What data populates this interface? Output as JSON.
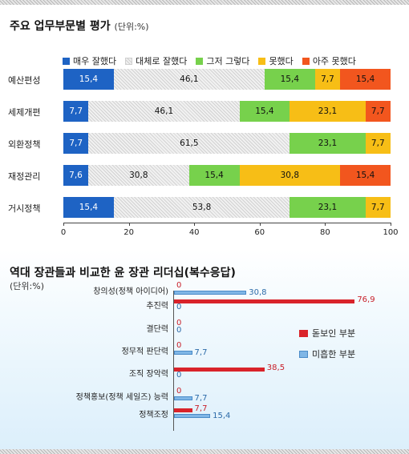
{
  "chart_data": [
    {
      "type": "bar",
      "orientation": "horizontal-stacked",
      "title": "주요 업무부문별 평가",
      "unit": "(단위:%)",
      "categories": [
        "예산편성",
        "세제개편",
        "외환정책",
        "재정관리",
        "거시정책"
      ],
      "series": [
        {
          "name": "매우 잘했다",
          "color": "#1e63c4",
          "values": [
            15.4,
            7.7,
            7.7,
            7.6,
            15.4
          ],
          "labels": [
            "15,4",
            "7,7",
            "7,7",
            "7,6",
            "15,4"
          ]
        },
        {
          "name": "대체로 잘했다",
          "color": "#e4e4e4",
          "values": [
            46.1,
            46.1,
            61.5,
            30.8,
            53.8
          ],
          "labels": [
            "46,1",
            "46,1",
            "61,5",
            "30,8",
            "53,8"
          ]
        },
        {
          "name": "그저 그렇다",
          "color": "#77d14c",
          "values": [
            15.4,
            15.4,
            23.1,
            15.4,
            23.1
          ],
          "labels": [
            "15,4",
            "15,4",
            "23,1",
            "15,4",
            "23,1"
          ]
        },
        {
          "name": "못했다",
          "color": "#f7be16",
          "values": [
            7.7,
            23.1,
            7.7,
            30.8,
            7.7
          ],
          "labels": [
            "7,7",
            "23,1",
            "7,7",
            "30,8",
            "7,7"
          ]
        },
        {
          "name": "아주 못했다",
          "color": "#f2561e",
          "values": [
            15.4,
            7.7,
            0,
            15.4,
            0
          ],
          "labels": [
            "15,4",
            "7,7",
            "",
            "15,4",
            ""
          ]
        }
      ],
      "xlim": [
        0,
        100
      ],
      "xticks": [
        "0",
        "20",
        "40",
        "60",
        "80",
        "100"
      ],
      "legend": "top"
    },
    {
      "type": "bar",
      "orientation": "horizontal-grouped",
      "title": "역대 장관들과 비교한 윤 장관 리더십(복수응답)",
      "unit": "(단위:%)",
      "categories": [
        "창의성(정책 아이디어)",
        "추진력",
        "결단력",
        "정무적 판단력",
        "조직 장악력",
        "정책홍보(정책 세일즈) 능력",
        "정책조정"
      ],
      "series": [
        {
          "name": "돋보인 부분",
          "color": "#d9232a",
          "values": [
            0,
            76.9,
            0,
            0,
            38.5,
            0,
            7.7
          ],
          "labels": [
            "0",
            "76,9",
            "0",
            "0",
            "38,5",
            "0",
            "7,7"
          ]
        },
        {
          "name": "미흡한 부분",
          "color": "#7fb6e6",
          "values": [
            30.8,
            0,
            0,
            7.7,
            0,
            7.7,
            15.4
          ],
          "labels": [
            "30,8",
            "0",
            "0",
            "7,7",
            "0",
            "7,7",
            "15,4"
          ]
        }
      ],
      "xlim": [
        0,
        100
      ],
      "legend": "right"
    }
  ]
}
